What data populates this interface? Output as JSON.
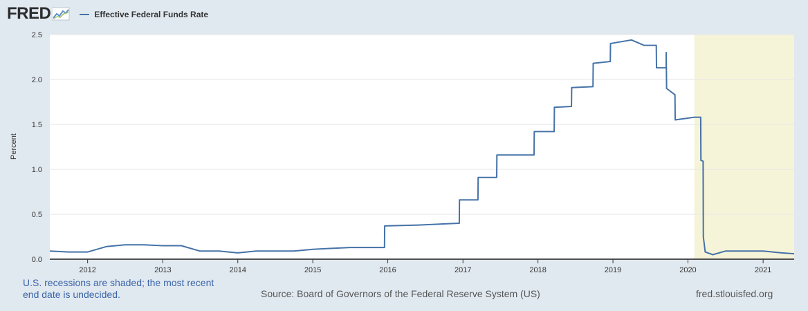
{
  "header": {
    "logo_text": "FRED",
    "legend_label": "Effective Federal Funds Rate"
  },
  "colors": {
    "series": "#4572a7",
    "recession": "#f6f4d8",
    "plot_bg": "#ffffff",
    "page_bg": "#e1e9f0",
    "grid": "#e6e6e6",
    "note": "#3a64a8"
  },
  "footer": {
    "note": "U.S. recessions are shaded; the most recent end date is undecided.",
    "source": "Source: Board of Governors of the Federal Reserve System (US)",
    "url": "fred.stlouisfed.org"
  },
  "chart_data": {
    "type": "line",
    "ylabel": "Percent",
    "xlim": [
      "2011-07-01",
      "2021-06-01"
    ],
    "ylim": [
      0,
      2.5
    ],
    "y_ticks": [
      0.0,
      0.5,
      1.0,
      1.5,
      2.0,
      2.5
    ],
    "y_tick_labels": [
      "0.0",
      "0.5",
      "1.0",
      "1.5",
      "2.0",
      "2.5"
    ],
    "x_tick_labels": [
      "2012",
      "2013",
      "2014",
      "2015",
      "2016",
      "2017",
      "2018",
      "2019",
      "2020",
      "2021"
    ],
    "x_tick_dates": [
      "2012-01-01",
      "2013-01-01",
      "2014-01-01",
      "2015-01-01",
      "2016-01-01",
      "2017-01-01",
      "2018-01-01",
      "2019-01-01",
      "2020-01-01",
      "2021-01-01"
    ],
    "recession_shading": [
      {
        "start": "2020-02-01",
        "end": "2021-06-01"
      }
    ],
    "grid": "horizontal",
    "series": [
      {
        "name": "Effective Federal Funds Rate",
        "points": [
          [
            "2011-07-01",
            0.09
          ],
          [
            "2011-10-01",
            0.08
          ],
          [
            "2012-01-01",
            0.08
          ],
          [
            "2012-04-01",
            0.14
          ],
          [
            "2012-07-01",
            0.16
          ],
          [
            "2012-10-01",
            0.16
          ],
          [
            "2013-01-01",
            0.15
          ],
          [
            "2013-04-01",
            0.15
          ],
          [
            "2013-07-01",
            0.09
          ],
          [
            "2013-10-01",
            0.09
          ],
          [
            "2014-01-01",
            0.07
          ],
          [
            "2014-04-01",
            0.09
          ],
          [
            "2014-07-01",
            0.09
          ],
          [
            "2014-10-01",
            0.09
          ],
          [
            "2015-01-01",
            0.11
          ],
          [
            "2015-04-01",
            0.12
          ],
          [
            "2015-07-01",
            0.13
          ],
          [
            "2015-12-16",
            0.13
          ],
          [
            "2015-12-17",
            0.37
          ],
          [
            "2016-06-01",
            0.38
          ],
          [
            "2016-12-14",
            0.4
          ],
          [
            "2016-12-15",
            0.66
          ],
          [
            "2017-03-15",
            0.66
          ],
          [
            "2017-03-16",
            0.91
          ],
          [
            "2017-06-14",
            0.91
          ],
          [
            "2017-06-15",
            1.16
          ],
          [
            "2017-12-13",
            1.16
          ],
          [
            "2017-12-14",
            1.42
          ],
          [
            "2018-03-21",
            1.42
          ],
          [
            "2018-03-22",
            1.69
          ],
          [
            "2018-06-13",
            1.7
          ],
          [
            "2018-06-14",
            1.91
          ],
          [
            "2018-09-26",
            1.92
          ],
          [
            "2018-09-27",
            2.18
          ],
          [
            "2018-12-19",
            2.2
          ],
          [
            "2018-12-20",
            2.4
          ],
          [
            "2019-04-01",
            2.44
          ],
          [
            "2019-06-01",
            2.38
          ],
          [
            "2019-07-31",
            2.38
          ],
          [
            "2019-08-01",
            2.13
          ],
          [
            "2019-09-17",
            2.13
          ],
          [
            "2019-09-17",
            2.3
          ],
          [
            "2019-09-19",
            1.9
          ],
          [
            "2019-10-30",
            1.83
          ],
          [
            "2019-10-31",
            1.55
          ],
          [
            "2020-02-01",
            1.58
          ],
          [
            "2020-03-03",
            1.58
          ],
          [
            "2020-03-04",
            1.1
          ],
          [
            "2020-03-15",
            1.09
          ],
          [
            "2020-03-16",
            0.25
          ],
          [
            "2020-03-25",
            0.08
          ],
          [
            "2020-05-01",
            0.05
          ],
          [
            "2020-07-01",
            0.09
          ],
          [
            "2020-10-01",
            0.09
          ],
          [
            "2021-01-01",
            0.09
          ],
          [
            "2021-04-01",
            0.07
          ],
          [
            "2021-06-01",
            0.06
          ]
        ]
      }
    ]
  }
}
